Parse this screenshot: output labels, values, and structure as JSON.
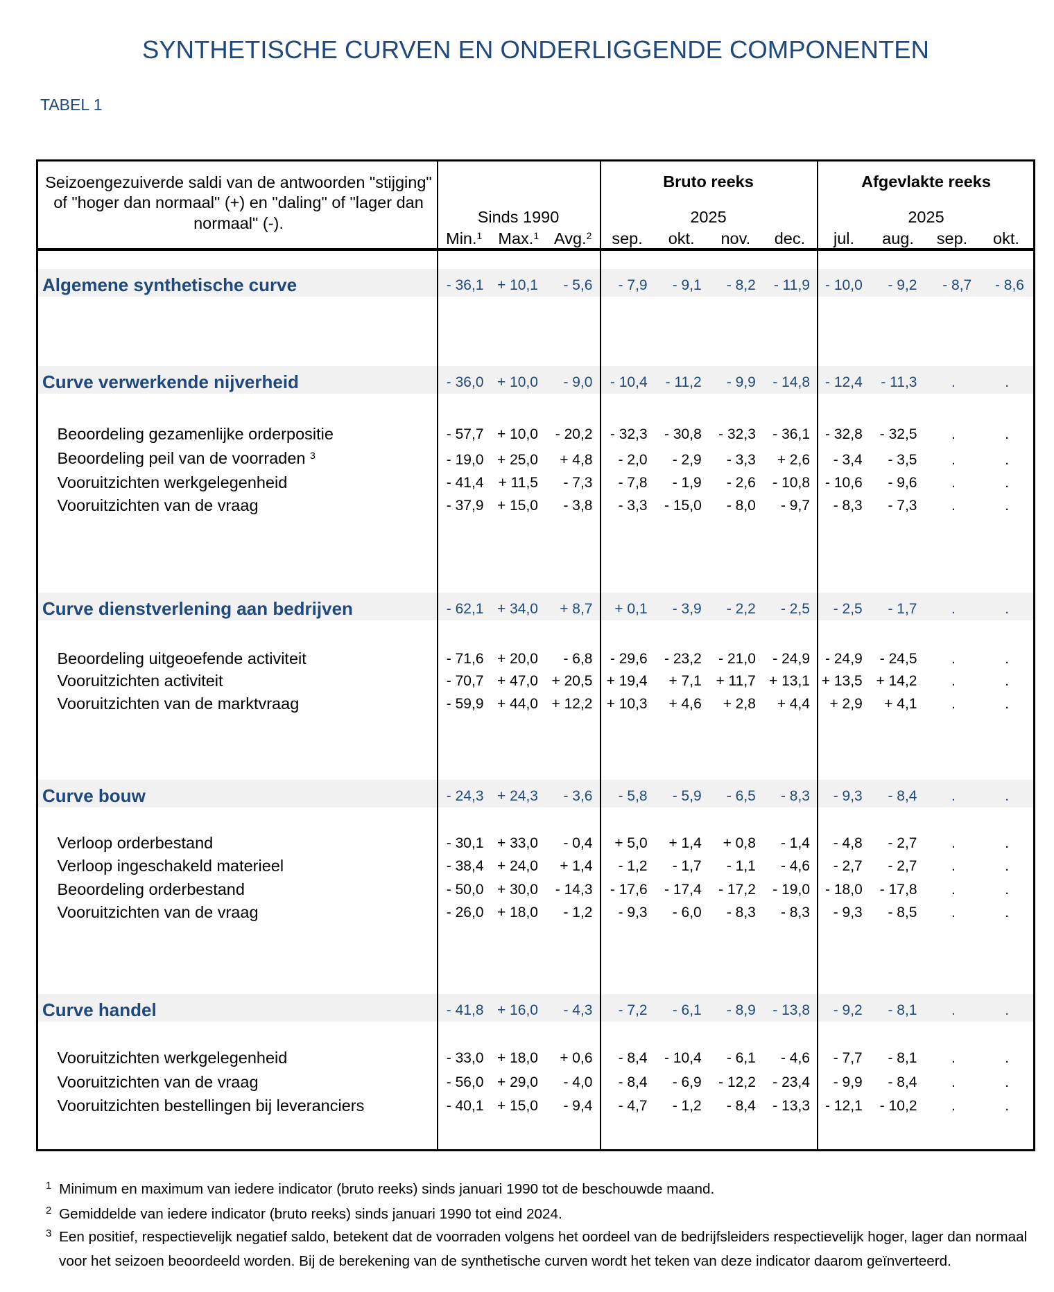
{
  "title": "SYNTHETISCHE CURVEN EN ONDERLIGGENDE COMPONENTEN",
  "table_label": "TABEL 1",
  "header": {
    "description": "Seizoengezuiverde saldi van de antwoorden \"stijging\" of \"hoger dan normaal\" (+) en \"daling\" of \"lager dan normaal\" (-).",
    "groups": [
      {
        "year_label": "Sinds 1990",
        "cols": [
          {
            "label": "Min.",
            "sup": "1"
          },
          {
            "label": "Max.",
            "sup": "1"
          },
          {
            "label": "Avg.",
            "sup": "2"
          }
        ]
      },
      {
        "title": "Bruto reeks",
        "year_label": "2025",
        "cols": [
          "sep.",
          "okt.",
          "nov.",
          "dec."
        ]
      },
      {
        "title": "Afgevlakte reeks",
        "year_label": "2025",
        "cols": [
          "jul.",
          "aug.",
          "sep.",
          "okt."
        ]
      }
    ]
  },
  "table": {
    "sections": [
      {
        "label": "Algemene synthetische curve",
        "values": [
          "- 36,1",
          "+ 10,1",
          "- 5,6",
          "- 7,9",
          "- 9,1",
          "- 8,2",
          "- 11,9",
          "- 10,0",
          "- 9,2",
          "- 8,7",
          "- 8,6"
        ],
        "rows": []
      },
      {
        "label": "Curve verwerkende nijverheid",
        "values": [
          "- 36,0",
          "+ 10,0",
          "- 9,0",
          "- 10,4",
          "- 11,2",
          "- 9,9",
          "- 14,8",
          "- 12,4",
          "- 11,3",
          ".",
          "."
        ],
        "rows": [
          {
            "label": "Beoordeling gezamenlijke orderpositie",
            "values": [
              "- 57,7",
              "+ 10,0",
              "- 20,2",
              "- 32,3",
              "- 30,8",
              "- 32,3",
              "- 36,1",
              "- 32,8",
              "- 32,5",
              ".",
              "."
            ]
          },
          {
            "label": "Beoordeling peil van de voorraden",
            "sup": "3",
            "values": [
              "- 19,0",
              "+ 25,0",
              "+ 4,8",
              "- 2,0",
              "- 2,9",
              "- 3,3",
              "+ 2,6",
              "- 3,4",
              "- 3,5",
              ".",
              "."
            ]
          },
          {
            "label": "Vooruitzichten werkgelegenheid",
            "values": [
              "- 41,4",
              "+ 11,5",
              "- 7,3",
              "- 7,8",
              "- 1,9",
              "- 2,6",
              "- 10,8",
              "- 10,6",
              "- 9,6",
              ".",
              "."
            ]
          },
          {
            "label": "Vooruitzichten van de vraag",
            "values": [
              "- 37,9",
              "+ 15,0",
              "- 3,8",
              "- 3,3",
              "- 15,0",
              "- 8,0",
              "- 9,7",
              "- 8,3",
              "- 7,3",
              ".",
              "."
            ]
          }
        ]
      },
      {
        "label": "Curve dienstverlening aan bedrijven",
        "values": [
          "- 62,1",
          "+ 34,0",
          "+ 8,7",
          "+ 0,1",
          "- 3,9",
          "- 2,2",
          "- 2,5",
          "- 2,5",
          "- 1,7",
          ".",
          "."
        ],
        "rows": [
          {
            "label": "Beoordeling uitgeoefende activiteit",
            "values": [
              "- 71,6",
              "+ 20,0",
              "- 6,8",
              "- 29,6",
              "- 23,2",
              "- 21,0",
              "- 24,9",
              "- 24,9",
              "- 24,5",
              ".",
              "."
            ]
          },
          {
            "label": "Vooruitzichten activiteit",
            "values": [
              "- 70,7",
              "+ 47,0",
              "+ 20,5",
              "+ 19,4",
              "+ 7,1",
              "+ 11,7",
              "+ 13,1",
              "+ 13,5",
              "+ 14,2",
              ".",
              "."
            ]
          },
          {
            "label": "Vooruitzichten van de marktvraag",
            "values": [
              "- 59,9",
              "+ 44,0",
              "+ 12,2",
              "+ 10,3",
              "+ 4,6",
              "+ 2,8",
              "+ 4,4",
              "+ 2,9",
              "+ 4,1",
              ".",
              "."
            ]
          }
        ]
      },
      {
        "label": "Curve bouw",
        "values": [
          "- 24,3",
          "+ 24,3",
          "- 3,6",
          "- 5,8",
          "- 5,9",
          "- 6,5",
          "- 8,3",
          "- 9,3",
          "- 8,4",
          ".",
          "."
        ],
        "rows": [
          {
            "label": "Verloop orderbestand",
            "values": [
              "- 30,1",
              "+ 33,0",
              "- 0,4",
              "+ 5,0",
              "+ 1,4",
              "+ 0,8",
              "- 1,4",
              "- 4,8",
              "- 2,7",
              ".",
              "."
            ]
          },
          {
            "label": "Verloop ingeschakeld materieel",
            "values": [
              "- 38,4",
              "+ 24,0",
              "+ 1,4",
              "- 1,2",
              "- 1,7",
              "- 1,1",
              "- 4,6",
              "- 2,7",
              "- 2,7",
              ".",
              "."
            ]
          },
          {
            "label": "Beoordeling orderbestand",
            "values": [
              "- 50,0",
              "+ 30,0",
              "- 14,3",
              "- 17,6",
              "- 17,4",
              "- 17,2",
              "- 19,0",
              "- 18,0",
              "- 17,8",
              ".",
              "."
            ]
          },
          {
            "label": "Vooruitzichten van de vraag",
            "values": [
              "- 26,0",
              "+ 18,0",
              "- 1,2",
              "- 9,3",
              "- 6,0",
              "- 8,3",
              "- 8,3",
              "- 9,3",
              "- 8,5",
              ".",
              "."
            ]
          }
        ]
      },
      {
        "label": "Curve handel",
        "values": [
          "- 41,8",
          "+ 16,0",
          "- 4,3",
          "- 7,2",
          "- 6,1",
          "- 8,9",
          "- 13,8",
          "- 9,2",
          "- 8,1",
          ".",
          "."
        ],
        "rows": [
          {
            "label": "Vooruitzichten werkgelegenheid",
            "values": [
              "- 33,0",
              "+ 18,0",
              "+ 0,6",
              "- 8,4",
              "- 10,4",
              "- 6,1",
              "- 4,6",
              "- 7,7",
              "- 8,1",
              ".",
              "."
            ]
          },
          {
            "label": "Vooruitzichten van de vraag",
            "values": [
              "- 56,0",
              "+ 29,0",
              "- 4,0",
              "- 8,4",
              "- 6,9",
              "- 12,2",
              "- 23,4",
              "- 9,9",
              "- 8,4",
              ".",
              "."
            ]
          },
          {
            "label": "Vooruitzichten bestellingen bij leveranciers",
            "values": [
              "- 40,1",
              "+ 15,0",
              "- 9,4",
              "- 4,7",
              "- 1,2",
              "- 8,4",
              "- 13,3",
              "- 12,1",
              "- 10,2",
              ".",
              "."
            ]
          }
        ]
      }
    ]
  },
  "footnotes": [
    {
      "marker": "1",
      "text": "Minimum en maximum van iedere indicator (bruto reeks) sinds januari 1990 tot de beschouwde maand."
    },
    {
      "marker": "2",
      "text": "Gemiddelde van iedere indicator (bruto reeks) sinds januari 1990 tot eind 2024."
    },
    {
      "marker": "3",
      "text": "Een positief, respectievelijk negatief saldo, betekent dat de voorraden volgens het oordeel van de bedrijfsleiders respectievelijk hoger, lager dan normaal voor het seizoen beoordeeld worden. Bij de berekening van de synthetische curven wordt het teken van deze indicator daarom geïnverteerd."
    }
  ]
}
